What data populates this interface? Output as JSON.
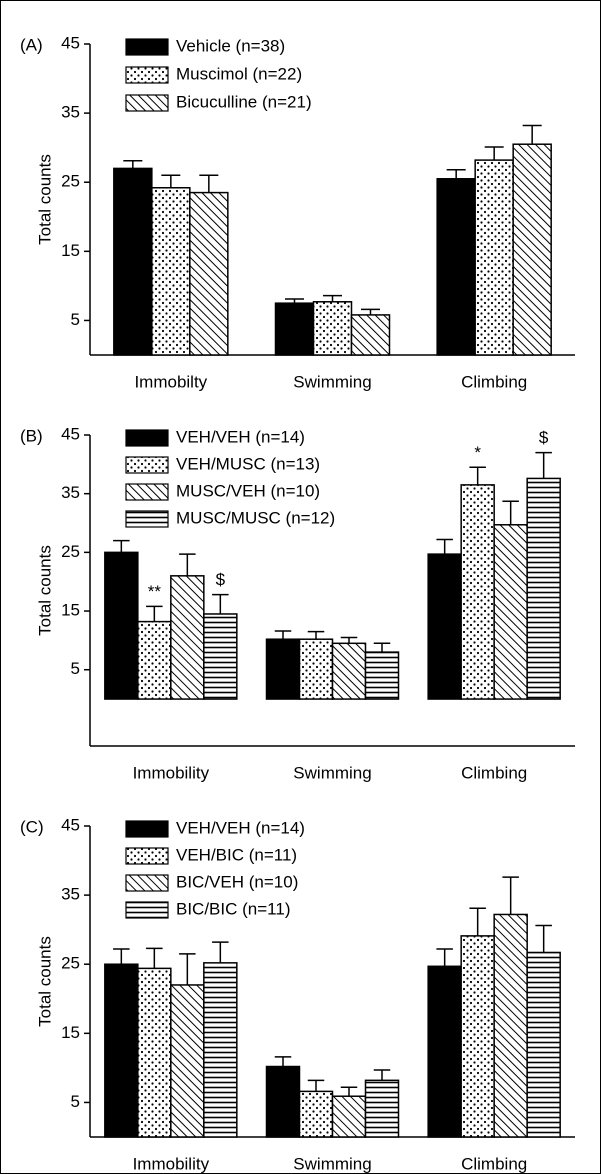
{
  "chart_data": [
    {
      "type": "bar",
      "panel_label": "(A)",
      "ylabel": "Total counts",
      "categories": [
        "Immobilty",
        "Swimming",
        "Climbing"
      ],
      "ylim": [
        0,
        45
      ],
      "yticks": [
        5,
        15,
        25,
        35,
        45
      ],
      "series": [
        {
          "name": "Vehicle (n=38)",
          "color": "#000000",
          "pattern": "solid",
          "values": [
            27,
            7.5,
            25.5
          ],
          "errors": [
            1.1,
            0.6,
            1.3
          ]
        },
        {
          "name": "Muscimol (n=22)",
          "color": "#000000",
          "pattern": "dots",
          "values": [
            24.2,
            7.7,
            28.2
          ],
          "errors": [
            1.8,
            0.9,
            1.9
          ]
        },
        {
          "name": "Bicuculline (n=21)",
          "color": "#000000",
          "pattern": "diagonal",
          "values": [
            23.5,
            5.8,
            30.5
          ],
          "errors": [
            2.5,
            0.8,
            2.7
          ]
        }
      ]
    },
    {
      "type": "bar",
      "panel_label": "(B)",
      "ylabel": "Total counts",
      "categories": [
        "Immobility",
        "Swimming",
        "Climbing"
      ],
      "ylim": [
        -8,
        45
      ],
      "yticks": [
        5,
        15,
        25,
        35,
        45
      ],
      "series": [
        {
          "name": "VEH/VEH (n=14)",
          "color": "#000000",
          "pattern": "solid",
          "values": [
            25,
            10.2,
            24.7
          ],
          "errors": [
            2,
            1.4,
            2.5
          ]
        },
        {
          "name": "VEH/MUSC (n=13)",
          "color": "#000000",
          "pattern": "dots",
          "values": [
            13.2,
            10.2,
            36.5
          ],
          "errors": [
            2.6,
            1.3,
            3
          ],
          "annotations": [
            "**",
            null,
            "*"
          ]
        },
        {
          "name": "MUSC/VEH (n=10)",
          "color": "#000000",
          "pattern": "diagonal",
          "values": [
            21,
            9.5,
            29.7
          ],
          "errors": [
            3.7,
            1,
            4
          ]
        },
        {
          "name": "MUSC/MUSC (n=12)",
          "color": "#000000",
          "pattern": "horizontal",
          "values": [
            14.5,
            8,
            37.6
          ],
          "errors": [
            3.3,
            1.5,
            4.4
          ],
          "annotations": [
            "$",
            null,
            "$"
          ]
        }
      ]
    },
    {
      "type": "bar",
      "panel_label": "(C)",
      "ylabel": "Total counts",
      "categories": [
        "Immobility",
        "Swimming",
        "Climbing"
      ],
      "ylim": [
        0,
        45
      ],
      "yticks": [
        5,
        15,
        25,
        35,
        45
      ],
      "series": [
        {
          "name": "VEH/VEH (n=14)",
          "color": "#000000",
          "pattern": "solid",
          "values": [
            25,
            10.2,
            24.7
          ],
          "errors": [
            2.2,
            1.4,
            2.5
          ]
        },
        {
          "name": "VEH/BIC (n=11)",
          "color": "#000000",
          "pattern": "dots",
          "values": [
            24.4,
            6.6,
            29.1
          ],
          "errors": [
            2.9,
            1.6,
            4
          ]
        },
        {
          "name": "BIC/VEH (n=10)",
          "color": "#000000",
          "pattern": "diagonal",
          "values": [
            22,
            5.9,
            32.2
          ],
          "errors": [
            4.5,
            1.3,
            5.4
          ]
        },
        {
          "name": "BIC/BIC (n=11)",
          "color": "#000000",
          "pattern": "horizontal",
          "values": [
            25.2,
            8.2,
            26.7
          ],
          "errors": [
            3,
            1.5,
            3.9
          ]
        }
      ]
    }
  ]
}
